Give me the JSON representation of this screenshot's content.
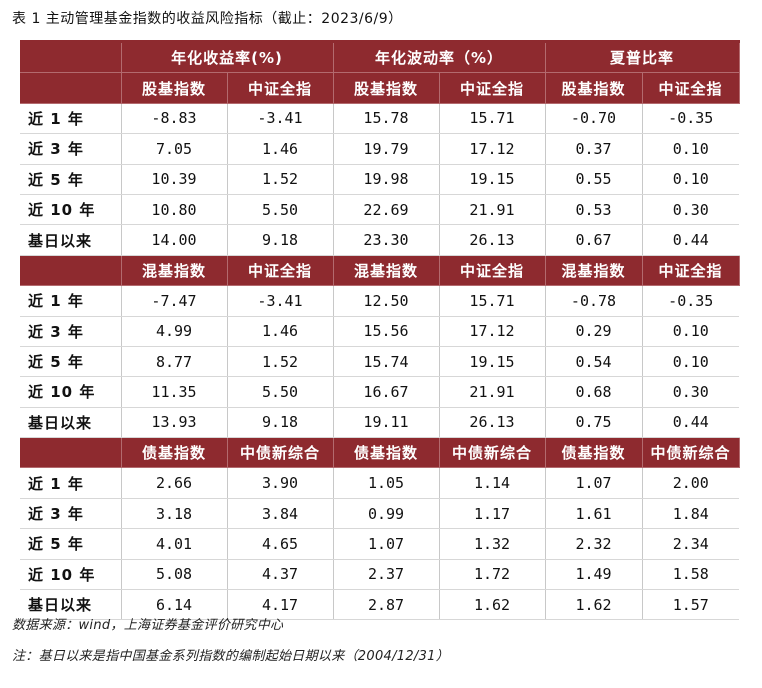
{
  "caption": "表 1 主动管理基金指数的收益风险指标（截止：2023/6/9）",
  "group_headers": [
    "年化收益率(%)",
    "年化波动率（%）",
    "夏普比率"
  ],
  "sections": [
    {
      "columns": [
        "股基指数",
        "中证全指",
        "股基指数",
        "中证全指",
        "股基指数",
        "中证全指"
      ],
      "rows": [
        {
          "label": "近 1 年",
          "values": [
            "-8.83",
            "-3.41",
            "15.78",
            "15.71",
            "-0.70",
            "-0.35"
          ]
        },
        {
          "label": "近 3 年",
          "values": [
            "7.05",
            "1.46",
            "19.79",
            "17.12",
            "0.37",
            "0.10"
          ]
        },
        {
          "label": "近 5 年",
          "values": [
            "10.39",
            "1.52",
            "19.98",
            "19.15",
            "0.55",
            "0.10"
          ]
        },
        {
          "label": "近 10 年",
          "values": [
            "10.80",
            "5.50",
            "22.69",
            "21.91",
            "0.53",
            "0.30"
          ]
        },
        {
          "label": "基日以来",
          "values": [
            "14.00",
            "9.18",
            "23.30",
            "26.13",
            "0.67",
            "0.44"
          ]
        }
      ]
    },
    {
      "columns": [
        "混基指数",
        "中证全指",
        "混基指数",
        "中证全指",
        "混基指数",
        "中证全指"
      ],
      "rows": [
        {
          "label": "近 1 年",
          "values": [
            "-7.47",
            "-3.41",
            "12.50",
            "15.71",
            "-0.78",
            "-0.35"
          ]
        },
        {
          "label": "近 3 年",
          "values": [
            "4.99",
            "1.46",
            "15.56",
            "17.12",
            "0.29",
            "0.10"
          ]
        },
        {
          "label": "近 5 年",
          "values": [
            "8.77",
            "1.52",
            "15.74",
            "19.15",
            "0.54",
            "0.10"
          ]
        },
        {
          "label": "近 10 年",
          "values": [
            "11.35",
            "5.50",
            "16.67",
            "21.91",
            "0.68",
            "0.30"
          ]
        },
        {
          "label": "基日以来",
          "values": [
            "13.93",
            "9.18",
            "19.11",
            "26.13",
            "0.75",
            "0.44"
          ]
        }
      ]
    },
    {
      "columns": [
        "债基指数",
        "中债新综合",
        "债基指数",
        "中债新综合",
        "债基指数",
        "中债新综合"
      ],
      "rows": [
        {
          "label": "近 1 年",
          "values": [
            "2.66",
            "3.90",
            "1.05",
            "1.14",
            "1.07",
            "2.00"
          ]
        },
        {
          "label": "近 3 年",
          "values": [
            "3.18",
            "3.84",
            "0.99",
            "1.17",
            "1.61",
            "1.84"
          ]
        },
        {
          "label": "近 5 年",
          "values": [
            "4.01",
            "4.65",
            "1.07",
            "1.32",
            "2.32",
            "2.34"
          ]
        },
        {
          "label": "近 10 年",
          "values": [
            "5.08",
            "4.37",
            "2.37",
            "1.72",
            "1.49",
            "1.58"
          ]
        },
        {
          "label": "基日以来",
          "values": [
            "6.14",
            "4.17",
            "2.87",
            "1.62",
            "1.62",
            "1.57"
          ]
        }
      ]
    }
  ],
  "notes": {
    "source": "数据来源：wind，上海证券基金评价研究中心",
    "remark": "注：基日以来是指中国基金系列指数的编制起始日期以来（2004/12/31）"
  }
}
